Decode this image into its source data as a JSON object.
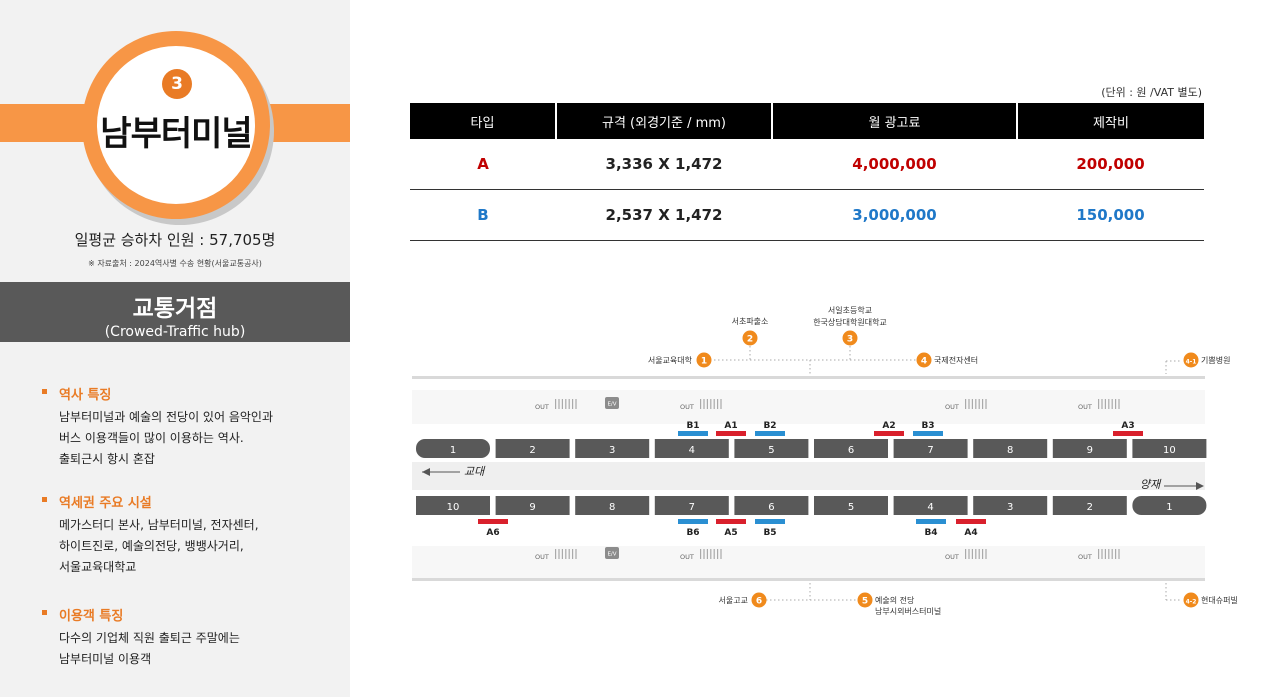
{
  "station": {
    "number": "3",
    "name": "남부터미널",
    "riders_text": "일평균 승하차 인원 : 57,705명",
    "source_text": "※ 자료출처 : 2024역사별 수송 현황(서울교통공사)"
  },
  "hub": {
    "title": "교통거점",
    "subtitle": "(Crowed-Traffic hub)"
  },
  "sections": [
    {
      "heading": "역사 특징",
      "lines": [
        "남부터미널과 예술의 전당이 있어 음악인과",
        "버스 이용객들이 많이 이용하는 역사.",
        "출퇴근시 항시 혼잡"
      ]
    },
    {
      "heading": "역세권 주요 시설",
      "lines": [
        "메가스터디 본사, 남부터미널, 전자센터,",
        "하이트진로, 예술의전당, 뱅뱅사거리,",
        "서울교육대학교"
      ]
    },
    {
      "heading": "이용객 특징",
      "lines": [
        "다수의 기업체 직원 출퇴근 주말에는",
        "남부터미널 이용객"
      ]
    }
  ],
  "table": {
    "unit_note": "(단위 : 원 /VAT 별도)",
    "headers": [
      "타입",
      "규격 (외경기준 / mm)",
      "월 광고료",
      "제작비"
    ],
    "rows": [
      {
        "type": "A",
        "size": "3,336 X 1,472",
        "monthly": "4,000,000",
        "production": "200,000"
      },
      {
        "type": "B",
        "size": "2,537 X 1,472",
        "monthly": "3,000,000",
        "production": "150,000"
      }
    ]
  },
  "map": {
    "exits_top": [
      {
        "num": "1",
        "label": "서울교육대학"
      },
      {
        "num": "2",
        "label": "서초파출소"
      },
      {
        "num": "3",
        "label": "서일초등학교",
        "label2": "한국상담대학원대학교"
      },
      {
        "num": "4",
        "label": "국제전자센터"
      },
      {
        "num": "4-1",
        "label": "기쁨병원"
      }
    ],
    "exits_bottom": [
      {
        "num": "6",
        "label": "서울고교"
      },
      {
        "num": "5",
        "label": "예술의 전당",
        "label2": "남부시외버스터미널"
      },
      {
        "num": "4-2",
        "label": "현대슈퍼빌"
      }
    ],
    "top_cars": [
      "1",
      "2",
      "3",
      "4",
      "5",
      "6",
      "7",
      "8",
      "9",
      "10"
    ],
    "bottom_cars": [
      "10",
      "9",
      "8",
      "7",
      "6",
      "5",
      "4",
      "3",
      "2",
      "1"
    ],
    "top_ads": [
      "B1",
      "A1",
      "B2",
      "A2",
      "B3",
      "A3"
    ],
    "bottom_ads": [
      "A6",
      "B6",
      "A5",
      "B5",
      "B4",
      "A4"
    ],
    "dir_left": "교대",
    "dir_right": "양재",
    "out_label": "OUT",
    "ev_label": "E/V",
    "colors": {
      "A": "#d9202c",
      "B": "#2a8fd2",
      "exit": "#f08a1c"
    }
  }
}
